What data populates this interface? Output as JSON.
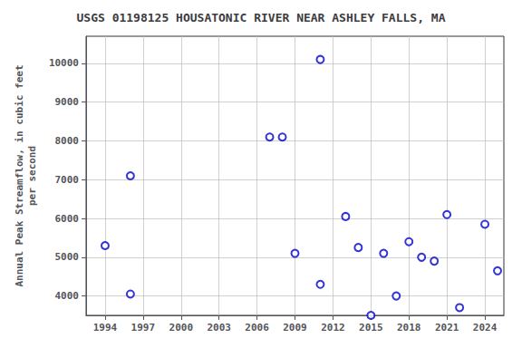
{
  "chart_data": {
    "type": "scatter",
    "title": "USGS 01198125 HOUSATONIC RIVER NEAR ASHLEY FALLS, MA",
    "ylabel": "Annual Peak Streamflow, in cubic feet\nper second",
    "x": [
      1994,
      1996,
      1996,
      2007,
      2008,
      2009,
      2011,
      2011,
      2013,
      2014,
      2015,
      2016,
      2017,
      2018,
      2019,
      2020,
      2021,
      2022,
      2024,
      2025
    ],
    "values": [
      5300,
      4050,
      7100,
      8100,
      8100,
      5100,
      4300,
      10100,
      6050,
      5250,
      3500,
      5100,
      4000,
      5400,
      5000,
      4900,
      6100,
      3700,
      5850,
      4650
    ],
    "xlim": [
      1992.5,
      2025.5
    ],
    "ylim": [
      3500,
      10700
    ],
    "xticks": [
      1994,
      1997,
      2000,
      2003,
      2006,
      2009,
      2012,
      2015,
      2018,
      2021,
      2024
    ],
    "yticks": [
      4000,
      5000,
      6000,
      7000,
      8000,
      9000,
      10000
    ],
    "color": "#0000cc",
    "marker": "circle",
    "grid": true
  }
}
